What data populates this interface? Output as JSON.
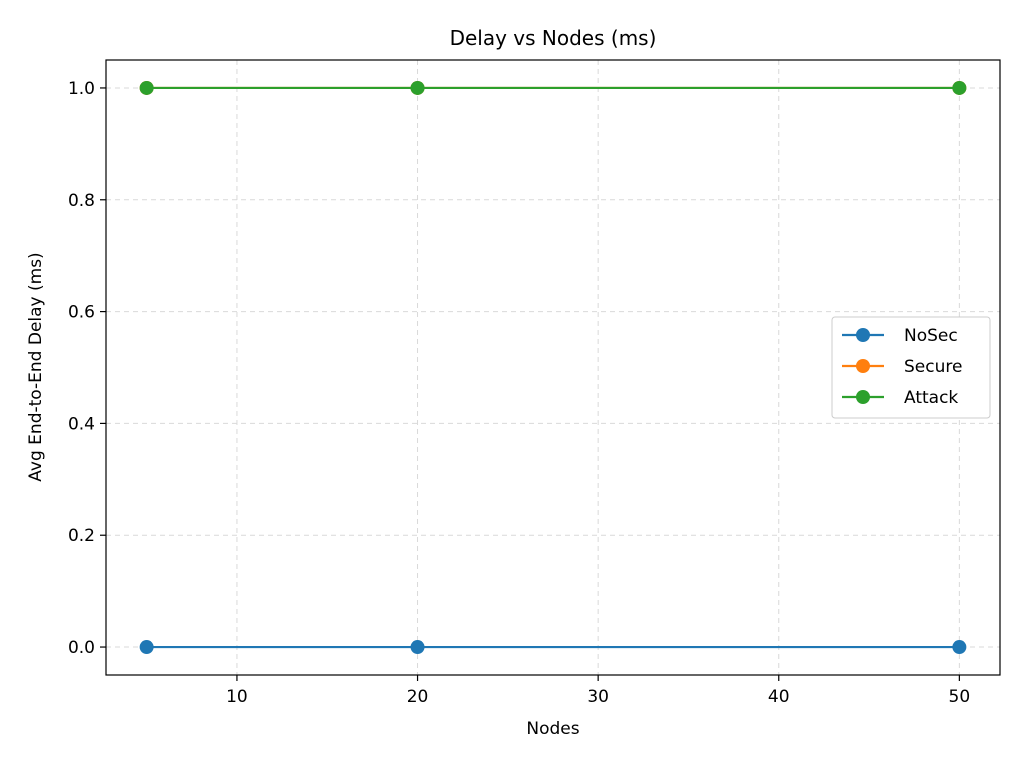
{
  "chart_data": {
    "type": "line",
    "title": "Delay vs Nodes (ms)",
    "xlabel": "Nodes",
    "ylabel": "Avg End-to-End Delay (ms)",
    "x": [
      5,
      20,
      50
    ],
    "xlim": [
      2.75,
      52.25
    ],
    "ylim": [
      -0.05,
      1.05
    ],
    "xticks": [
      10,
      20,
      30,
      40,
      50
    ],
    "yticks": [
      0.0,
      0.2,
      0.4,
      0.6,
      0.8,
      1.0
    ],
    "xtick_labels": [
      "10",
      "20",
      "30",
      "40",
      "50"
    ],
    "ytick_labels": [
      "0.0",
      "0.2",
      "0.4",
      "0.6",
      "0.8",
      "1.0"
    ],
    "grid": true,
    "legend_position": "center-right",
    "series": [
      {
        "name": "NoSec",
        "values": [
          0,
          0,
          0
        ],
        "color": "#1f77b4"
      },
      {
        "name": "Secure",
        "values": [
          1,
          1,
          1
        ],
        "color": "#ff7f0e"
      },
      {
        "name": "Attack",
        "values": [
          1,
          1,
          1
        ],
        "color": "#2ca02c"
      }
    ]
  }
}
